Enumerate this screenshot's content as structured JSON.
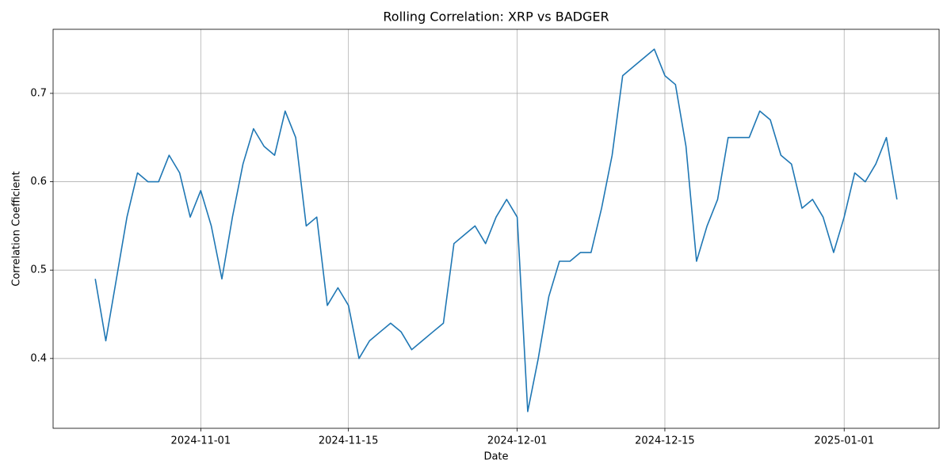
{
  "chart_data": {
    "type": "line",
    "title": "Rolling Correlation: XRP vs BADGER",
    "x_label": "Date",
    "y_label": "Correlation Coefficient",
    "x": [
      "2024-10-22",
      "2024-10-23",
      "2024-10-24",
      "2024-10-25",
      "2024-10-26",
      "2024-10-27",
      "2024-10-28",
      "2024-10-29",
      "2024-10-30",
      "2024-10-31",
      "2024-11-01",
      "2024-11-02",
      "2024-11-03",
      "2024-11-04",
      "2024-11-05",
      "2024-11-06",
      "2024-11-07",
      "2024-11-08",
      "2024-11-09",
      "2024-11-10",
      "2024-11-11",
      "2024-11-12",
      "2024-11-13",
      "2024-11-14",
      "2024-11-15",
      "2024-11-16",
      "2024-11-17",
      "2024-11-18",
      "2024-11-19",
      "2024-11-20",
      "2024-11-21",
      "2024-11-22",
      "2024-11-23",
      "2024-11-24",
      "2024-11-25",
      "2024-11-26",
      "2024-11-27",
      "2024-11-28",
      "2024-11-29",
      "2024-11-30",
      "2024-12-01",
      "2024-12-02",
      "2024-12-03",
      "2024-12-04",
      "2024-12-05",
      "2024-12-06",
      "2024-12-07",
      "2024-12-08",
      "2024-12-09",
      "2024-12-10",
      "2024-12-11",
      "2024-12-12",
      "2024-12-13",
      "2024-12-14",
      "2024-12-15",
      "2024-12-16",
      "2024-12-17",
      "2024-12-18",
      "2024-12-19",
      "2024-12-20",
      "2024-12-21",
      "2024-12-22",
      "2024-12-23",
      "2024-12-24",
      "2024-12-25",
      "2024-12-26",
      "2024-12-27",
      "2024-12-28",
      "2024-12-29",
      "2024-12-30",
      "2024-12-31",
      "2025-01-01",
      "2025-01-02",
      "2025-01-03",
      "2025-01-04",
      "2025-01-05",
      "2025-01-06"
    ],
    "series": [
      {
        "name": "Rolling Correlation",
        "color": "#1f77b4",
        "values": [
          0.49,
          0.42,
          0.49,
          0.56,
          0.61,
          0.6,
          0.6,
          0.63,
          0.61,
          0.56,
          0.59,
          0.55,
          0.49,
          0.56,
          0.62,
          0.66,
          0.64,
          0.63,
          0.68,
          0.65,
          0.55,
          0.56,
          0.46,
          0.48,
          0.46,
          0.4,
          0.42,
          0.43,
          0.44,
          0.43,
          0.41,
          0.42,
          0.43,
          0.44,
          0.53,
          0.54,
          0.55,
          0.53,
          0.56,
          0.58,
          0.56,
          0.34,
          0.4,
          0.47,
          0.51,
          0.51,
          0.52,
          0.52,
          0.57,
          0.63,
          0.72,
          0.73,
          0.74,
          0.75,
          0.72,
          0.71,
          0.64,
          0.51,
          0.55,
          0.58,
          0.65,
          0.65,
          0.65,
          0.68,
          0.67,
          0.63,
          0.62,
          0.57,
          0.58,
          0.56,
          0.52,
          0.56,
          0.61,
          0.6,
          0.62,
          0.65,
          0.58
        ]
      }
    ],
    "xlim": [
      "2024-10-18",
      "2025-01-10"
    ],
    "xticks": [
      "2024-11-01",
      "2024-11-15",
      "2024-12-01",
      "2024-12-15",
      "2025-01-01"
    ],
    "ylim": [
      0.321,
      0.7725
    ],
    "yticks": [
      0.4,
      0.5,
      0.6,
      0.7
    ],
    "grid": true
  }
}
